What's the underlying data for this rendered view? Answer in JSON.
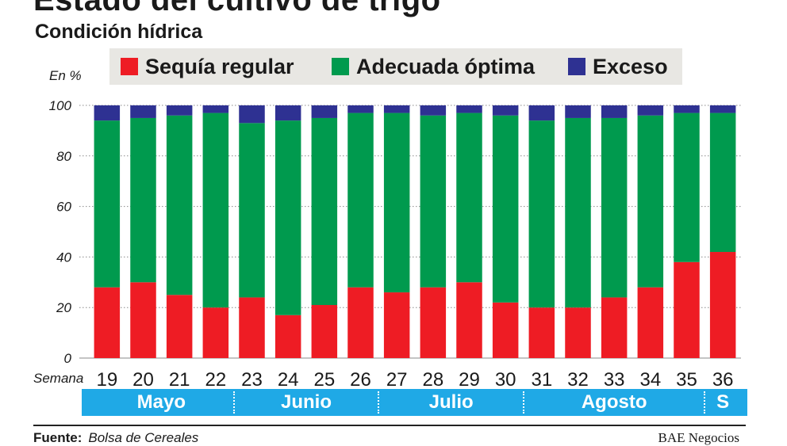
{
  "header": {
    "title": "Estado del cultivo de trigo",
    "subtitle": "Condición hídrica"
  },
  "chart_data": {
    "type": "bar",
    "stacked": true,
    "unit_label": "En %",
    "x_prefix": "Semana",
    "categories": [
      "19",
      "20",
      "21",
      "22",
      "23",
      "24",
      "25",
      "26",
      "27",
      "28",
      "29",
      "30",
      "31",
      "32",
      "33",
      "34",
      "35",
      "36"
    ],
    "series": [
      {
        "name": "Sequía regular",
        "color": "#ee1c24",
        "values": [
          28,
          30,
          25,
          20,
          24,
          17,
          21,
          28,
          26,
          28,
          30,
          22,
          20,
          20,
          24,
          28,
          38,
          42
        ]
      },
      {
        "name": "Adecuada óptima",
        "color": "#009a4e",
        "values": [
          66,
          65,
          71,
          77,
          69,
          77,
          74,
          69,
          71,
          68,
          67,
          74,
          74,
          75,
          71,
          68,
          59,
          55
        ]
      },
      {
        "name": "Exceso",
        "color": "#2e3192",
        "values": [
          6,
          5,
          4,
          3,
          7,
          6,
          5,
          3,
          3,
          4,
          3,
          4,
          6,
          5,
          5,
          4,
          3,
          3
        ]
      }
    ],
    "ylim": [
      0,
      100
    ],
    "yticks": [
      0,
      20,
      40,
      60,
      80,
      100
    ],
    "grid": true,
    "legend_position": "top",
    "months": [
      {
        "label": "Mayo",
        "weeks": [
          "19",
          "20",
          "21",
          "22"
        ]
      },
      {
        "label": "Junio",
        "weeks": [
          "23",
          "24",
          "25",
          "26"
        ]
      },
      {
        "label": "Julio",
        "weeks": [
          "27",
          "28",
          "29",
          "30"
        ]
      },
      {
        "label": "Agosto",
        "weeks": [
          "31",
          "32",
          "33",
          "34",
          "35"
        ]
      },
      {
        "label": "S",
        "weeks": [
          "36"
        ]
      }
    ]
  },
  "footer": {
    "source_label": "Fuente:",
    "source_value": "Bolsa de Cereales",
    "brand": "BAE Negocios"
  }
}
